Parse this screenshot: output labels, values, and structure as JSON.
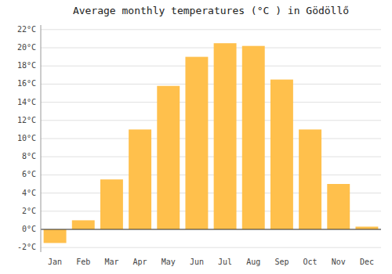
{
  "chart_data": {
    "type": "bar",
    "title": "Average monthly temperatures (°C ) in Gödöllő",
    "categories": [
      "Jan",
      "Feb",
      "Mar",
      "Apr",
      "May",
      "Jun",
      "Jul",
      "Aug",
      "Sep",
      "Oct",
      "Nov",
      "Dec"
    ],
    "values": [
      -1.5,
      1.0,
      5.5,
      11.0,
      15.8,
      19.0,
      20.5,
      20.2,
      16.5,
      11.0,
      5.0,
      0.3
    ],
    "color": "#FFC04C",
    "ylim": [
      -2.5,
      22.5
    ],
    "yticks": [
      {
        "value": -2,
        "label": "-2°C"
      },
      {
        "value": 0,
        "label": "0°C"
      },
      {
        "value": 2,
        "label": "2°C"
      },
      {
        "value": 4,
        "label": "4°C"
      },
      {
        "value": 6,
        "label": "6°C"
      },
      {
        "value": 8,
        "label": "8°C"
      },
      {
        "value": 10,
        "label": "10°C"
      },
      {
        "value": 12,
        "label": "12°C"
      },
      {
        "value": 14,
        "label": "14°C"
      },
      {
        "value": 16,
        "label": "16°C"
      },
      {
        "value": 18,
        "label": "18°C"
      },
      {
        "value": 20,
        "label": "20°C"
      },
      {
        "value": 22,
        "label": "22°C"
      }
    ],
    "grid": true
  }
}
